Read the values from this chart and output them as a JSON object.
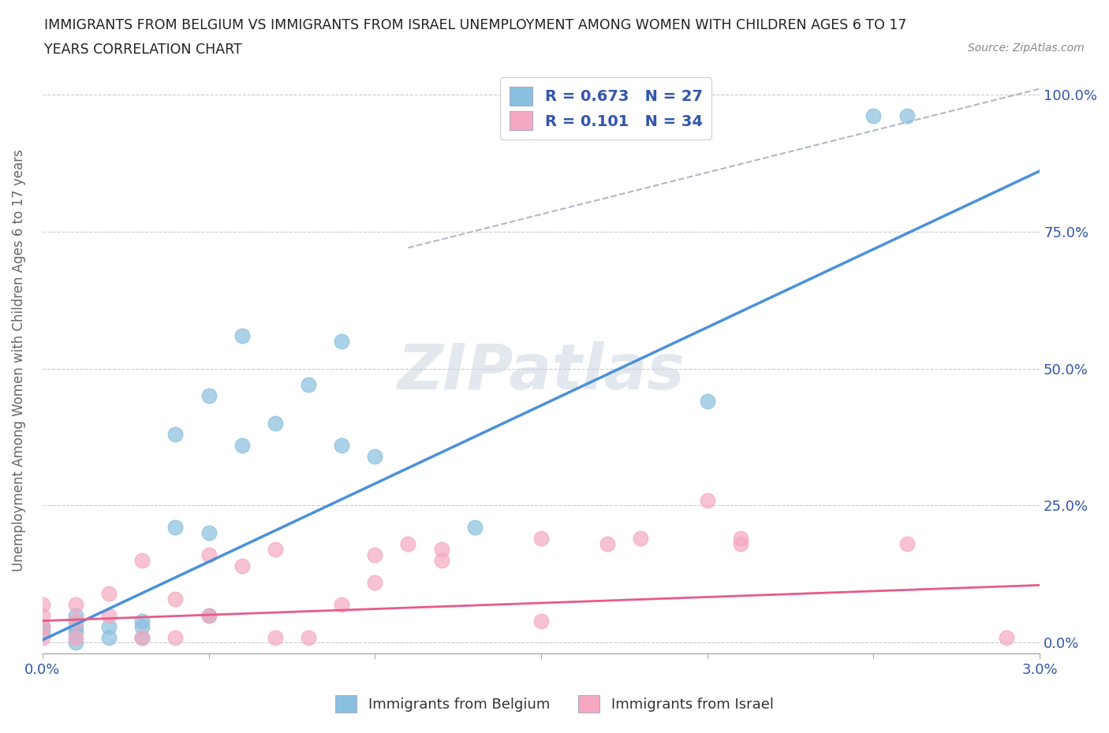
{
  "title_line1": "IMMIGRANTS FROM BELGIUM VS IMMIGRANTS FROM ISRAEL UNEMPLOYMENT AMONG WOMEN WITH CHILDREN AGES 6 TO 17",
  "title_line2": "YEARS CORRELATION CHART",
  "source": "Source: ZipAtlas.com",
  "ylabel": "Unemployment Among Women with Children Ages 6 to 17 years",
  "xlim": [
    0.0,
    0.03
  ],
  "ylim": [
    -0.02,
    1.05
  ],
  "xticks": [
    0.0,
    0.005,
    0.01,
    0.015,
    0.02,
    0.025,
    0.03
  ],
  "xticklabels": [
    "0.0%",
    "",
    "",
    "",
    "",
    "",
    "3.0%"
  ],
  "yticks": [
    0.0,
    0.25,
    0.5,
    0.75,
    1.0
  ],
  "yticklabels_right": [
    "0.0%",
    "25.0%",
    "50.0%",
    "75.0%",
    "100.0%"
  ],
  "watermark": "ZIPatlas",
  "legend_r1": "R = 0.673",
  "legend_n1": "N = 27",
  "legend_r2": "R = 0.101",
  "legend_n2": "N = 34",
  "color_belgium": "#89bfdf",
  "color_israel": "#f5a8bf",
  "color_belgium_line": "#4a90d9",
  "color_israel_line": "#e85a8a",
  "color_trend_dashed": "#b0b8c8",
  "belgium_scatter_x": [
    0.0,
    0.0,
    0.001,
    0.001,
    0.001,
    0.001,
    0.002,
    0.002,
    0.003,
    0.003,
    0.003,
    0.004,
    0.004,
    0.005,
    0.005,
    0.005,
    0.006,
    0.006,
    0.007,
    0.008,
    0.009,
    0.009,
    0.01,
    0.013,
    0.02,
    0.025,
    0.026
  ],
  "belgium_scatter_y": [
    0.02,
    0.03,
    0.0,
    0.02,
    0.03,
    0.05,
    0.01,
    0.03,
    0.01,
    0.03,
    0.04,
    0.21,
    0.38,
    0.05,
    0.2,
    0.45,
    0.36,
    0.56,
    0.4,
    0.47,
    0.36,
    0.55,
    0.34,
    0.21,
    0.44,
    0.96,
    0.96
  ],
  "israel_scatter_x": [
    0.0,
    0.0,
    0.0,
    0.0,
    0.001,
    0.001,
    0.001,
    0.002,
    0.002,
    0.003,
    0.003,
    0.004,
    0.004,
    0.005,
    0.005,
    0.006,
    0.007,
    0.007,
    0.008,
    0.009,
    0.01,
    0.01,
    0.011,
    0.012,
    0.012,
    0.015,
    0.015,
    0.017,
    0.018,
    0.02,
    0.021,
    0.021,
    0.026,
    0.029
  ],
  "israel_scatter_y": [
    0.01,
    0.03,
    0.05,
    0.07,
    0.01,
    0.04,
    0.07,
    0.05,
    0.09,
    0.01,
    0.15,
    0.01,
    0.08,
    0.05,
    0.16,
    0.14,
    0.01,
    0.17,
    0.01,
    0.07,
    0.11,
    0.16,
    0.18,
    0.15,
    0.17,
    0.04,
    0.19,
    0.18,
    0.19,
    0.26,
    0.18,
    0.19,
    0.18,
    0.01
  ],
  "belgium_regline_x": [
    0.0,
    0.03
  ],
  "belgium_regline_y": [
    0.005,
    0.86
  ],
  "israel_regline_x": [
    0.0,
    0.03
  ],
  "israel_regline_y": [
    0.04,
    0.105
  ],
  "dash_line_x": [
    0.011,
    0.03
  ],
  "dash_line_y": [
    0.72,
    1.01
  ]
}
